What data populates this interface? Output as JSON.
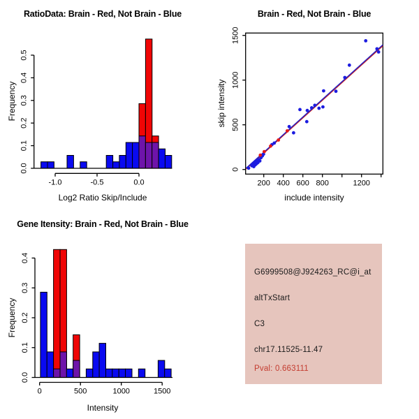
{
  "window": {
    "background": "#ffffff"
  },
  "colors": {
    "red": "#F00505",
    "blue": "#0A0AF0",
    "purple": "#6E14AA",
    "point_blue": "#1C1CE0",
    "point_red": "#E51A1A",
    "line_blue": "#2020C8",
    "line_red": "#C82020",
    "info_box_bg": "#E6C5BD",
    "pval_red": "#C43C30",
    "axis": "#000000"
  },
  "chart_data": [
    {
      "panel": "top-left",
      "type": "bar",
      "subtype": "overlaid-histogram",
      "title": "RatioData: Brain - Red, Not Brain - Blue",
      "xlabel": "Log2 Ratio Skip/Include",
      "ylabel": "Frequency",
      "legend_note": "Brain = red, Not Brain = blue, overlap = purple",
      "xlim": [
        -1.25,
        0.39
      ],
      "ylim": [
        0,
        0.6
      ],
      "xticks": {
        "values": [
          -1.0,
          -0.5,
          0.0
        ],
        "labels": [
          "-1.0",
          "-0.5",
          "0.0"
        ]
      },
      "yticks": {
        "values": [
          0,
          0.1,
          0.2,
          0.3,
          0.4,
          0.5
        ],
        "labels": [
          "0.0",
          "0.1",
          "0.2",
          "0.3",
          "0.4",
          "0.5"
        ]
      },
      "bars_format": [
        "bin_start",
        "bin_end",
        "blue_freq",
        "red_freq"
      ],
      "bars": [
        [
          -1.17,
          -1.092,
          0.0286,
          0
        ],
        [
          -1.092,
          -1.014,
          0.0286,
          0
        ],
        [
          -0.858,
          -0.78,
          0.0571,
          0
        ],
        [
          -0.702,
          -0.624,
          0.0286,
          0
        ],
        [
          -0.39,
          -0.312,
          0.0571,
          0
        ],
        [
          -0.312,
          -0.234,
          0.0286,
          0
        ],
        [
          -0.234,
          -0.156,
          0.0571,
          0
        ],
        [
          -0.156,
          -0.078,
          0.1143,
          0
        ],
        [
          -0.078,
          0.0,
          0.1143,
          0
        ],
        [
          0.0,
          0.078,
          0.1429,
          0.2857
        ],
        [
          0.078,
          0.156,
          0.1143,
          0.5714
        ],
        [
          0.156,
          0.234,
          0.1143,
          0.1429
        ],
        [
          0.234,
          0.312,
          0.0857,
          0
        ],
        [
          0.312,
          0.39,
          0.0571,
          0
        ]
      ]
    },
    {
      "panel": "top-right",
      "type": "scatter",
      "title": "Brain - Red, Not Brain - Blue",
      "xlabel": "include intensity",
      "ylabel": "skip intensity",
      "xlim": [
        14,
        1419
      ],
      "ylim": [
        -52,
        1527
      ],
      "xticks": {
        "values": [
          200,
          400,
          600,
          800,
          1000,
          1200,
          1400
        ],
        "labels": [
          "200",
          "400",
          "600",
          "800",
          "",
          "1200",
          ""
        ]
      },
      "yticks": {
        "values": [
          0,
          500,
          1000,
          1500
        ],
        "labels": [
          "0",
          "500",
          "1000",
          "1500"
        ]
      },
      "points_blue": [
        [
          45,
          15
        ],
        [
          78,
          42
        ],
        [
          88,
          62
        ],
        [
          98,
          32
        ],
        [
          104,
          76
        ],
        [
          113,
          52
        ],
        [
          120,
          90
        ],
        [
          127,
          66
        ],
        [
          134,
          100
        ],
        [
          141,
          78
        ],
        [
          150,
          110
        ],
        [
          160,
          96
        ],
        [
          172,
          132
        ],
        [
          186,
          152
        ],
        [
          198,
          172
        ],
        [
          283,
          277
        ],
        [
          307,
          295
        ],
        [
          460,
          480
        ],
        [
          505,
          410
        ],
        [
          640,
          535
        ],
        [
          570,
          670
        ],
        [
          645,
          660
        ],
        [
          690,
          690
        ],
        [
          722,
          718
        ],
        [
          765,
          685
        ],
        [
          805,
          700
        ],
        [
          812,
          880
        ],
        [
          938,
          875
        ],
        [
          1029,
          1029
        ],
        [
          1076,
          1167
        ],
        [
          1243,
          1440
        ],
        [
          1358,
          1350
        ],
        [
          1374,
          1315
        ]
      ],
      "points_red": [
        [
          165,
          160
        ],
        [
          205,
          200
        ],
        [
          270,
          262
        ],
        [
          350,
          330
        ],
        [
          440,
          432
        ]
      ],
      "fit_line_blue": [
        [
          20,
          15
        ],
        [
          1418,
          1395
        ]
      ],
      "fit_line_red": [
        [
          20,
          6
        ],
        [
          1418,
          1384
        ]
      ]
    },
    {
      "panel": "bottom-left",
      "type": "bar",
      "subtype": "overlaid-histogram",
      "title": "Gene Itensity: Brain - Red, Not Brain - Blue",
      "xlabel": "Intensity",
      "ylabel": "Frequency",
      "legend_note": "Brain = red, Not Brain = blue, overlap = purple",
      "xlim": [
        -57,
        1626
      ],
      "ylim": [
        0,
        0.44
      ],
      "xticks": {
        "values": [
          0,
          500,
          1000,
          1500
        ],
        "labels": [
          "0",
          "500",
          "1000",
          "1500"
        ]
      },
      "yticks": {
        "values": [
          0,
          0.1,
          0.2,
          0.3,
          0.4
        ],
        "labels": [
          "0.0",
          "0.1",
          "0.2",
          "0.3",
          "0.4"
        ]
      },
      "bars_format": [
        "bin_start",
        "bin_end",
        "blue_freq",
        "red_freq"
      ],
      "bars": [
        [
          10,
          90,
          0.2857,
          0
        ],
        [
          90,
          170,
          0.0857,
          0
        ],
        [
          170,
          250,
          0.0286,
          0.4286
        ],
        [
          250,
          330,
          0.0857,
          0.4286
        ],
        [
          330,
          410,
          0.0286,
          0
        ],
        [
          410,
          490,
          0.0571,
          0.1429
        ],
        [
          570,
          650,
          0.0286,
          0
        ],
        [
          650,
          730,
          0.0857,
          0
        ],
        [
          730,
          810,
          0.1143,
          0
        ],
        [
          810,
          890,
          0.0286,
          0
        ],
        [
          890,
          970,
          0.0286,
          0
        ],
        [
          970,
          1050,
          0.0286,
          0
        ],
        [
          1050,
          1130,
          0.0286,
          0
        ],
        [
          1210,
          1290,
          0.0286,
          0
        ],
        [
          1450,
          1530,
          0.0571,
          0
        ],
        [
          1530,
          1610,
          0.0286,
          0
        ]
      ]
    }
  ],
  "info_panel": {
    "probe_id": "G6999508@J924263_RC@i_at",
    "event_type": "altTxStart",
    "group": "C3",
    "location": "chr17.11525-11.47",
    "pval": "Pval: 0.663111"
  }
}
